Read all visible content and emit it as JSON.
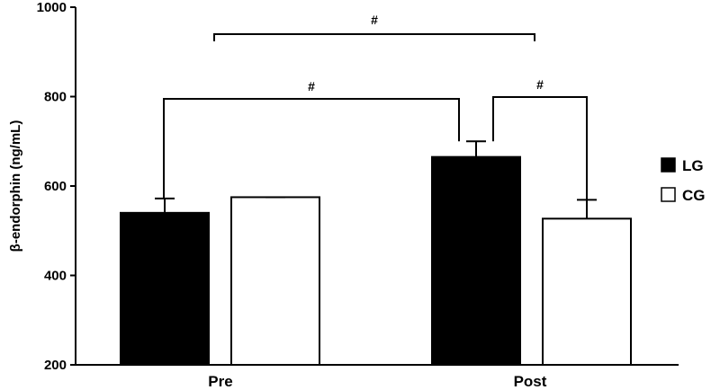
{
  "chart_data": {
    "type": "bar",
    "title": "",
    "xlabel": "",
    "ylabel": "β-endorphin (ng/mL)",
    "ylim": [
      200,
      1000
    ],
    "yticks": [
      200,
      400,
      600,
      800,
      1000
    ],
    "categories": [
      "Pre",
      "Post"
    ],
    "series": [
      {
        "name": "LG",
        "values": [
          540,
          665
        ],
        "color": "#000000"
      },
      {
        "name": "CG",
        "values": [
          575,
          527
        ],
        "color": "#ffffff"
      }
    ],
    "error_caps": [
      {
        "series": "LG",
        "category": "Pre",
        "upper": 572
      },
      {
        "series": "CG",
        "category": "Pre",
        "upper": 575
      },
      {
        "series": "LG",
        "category": "Post",
        "upper": 700
      },
      {
        "series": "CG",
        "category": "Post",
        "upper": 569
      }
    ],
    "legend_position": "right",
    "grid": false,
    "significance": [
      {
        "label": "#",
        "from": "LG Pre",
        "to": "LG Post"
      },
      {
        "label": "#",
        "from": "LG Post",
        "to": "CG Post"
      },
      {
        "label": "#",
        "from": "Pre",
        "to": "Post"
      }
    ]
  }
}
